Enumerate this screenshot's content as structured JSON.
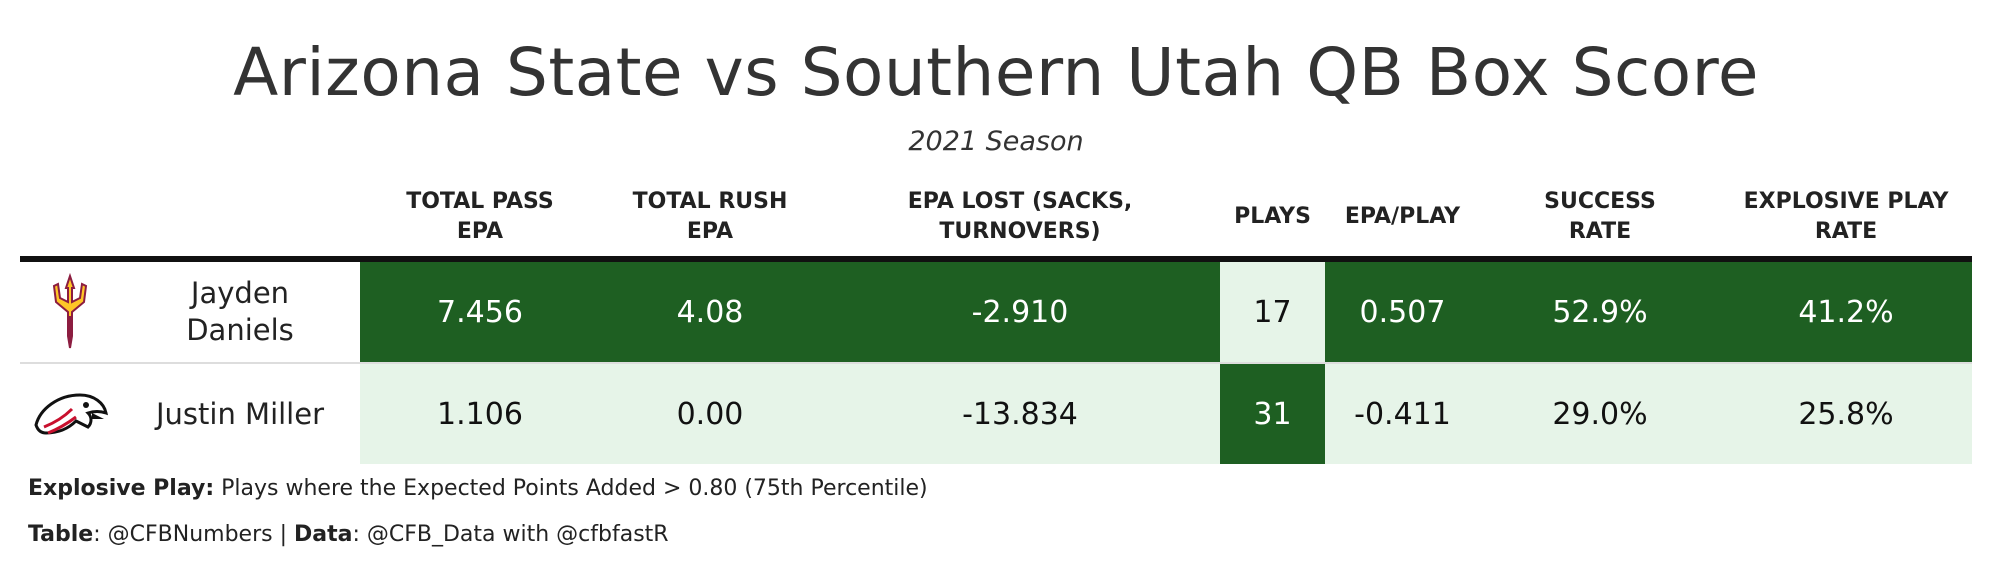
{
  "title": "Arizona State vs Southern Utah QB Box Score",
  "subtitle": "2021 Season",
  "columns": [
    "TOTAL PASS\nEPA",
    "TOTAL RUSH\nEPA",
    "EPA LOST (SACKS,\nTURNOVERS)",
    "PLAYS",
    "EPA/PLAY",
    "SUCCESS\nRATE",
    "EXPLOSIVE PLAY\nRATE"
  ],
  "rows": [
    {
      "logo": "pitchfork-logo",
      "name": "Jayden\nDaniels",
      "values": [
        "7.456",
        "4.08",
        "-2.910",
        "17",
        "0.507",
        "52.9%",
        "41.2%"
      ]
    },
    {
      "logo": "thunderbird-logo",
      "name": "Justin Miller",
      "values": [
        "1.106",
        "0.00",
        "-13.834",
        "31",
        "-0.411",
        "29.0%",
        "25.8%"
      ]
    }
  ],
  "footnotes": {
    "explosive_label": "Explosive Play:",
    "explosive_text": " Plays where the Expected Points Added > 0.80 (75th Percentile)",
    "table_label": "Table",
    "table_text": ": @CFBNumbers | ",
    "data_label": "Data",
    "data_text": ": @CFB_Data with @cfbfastR"
  },
  "colors": {
    "dark_green": "#1e5f22",
    "light_green": "#e6f4e8",
    "asu_maroon": "#8c1d40",
    "asu_gold": "#ffc627",
    "suu_red": "#c8102e"
  }
}
